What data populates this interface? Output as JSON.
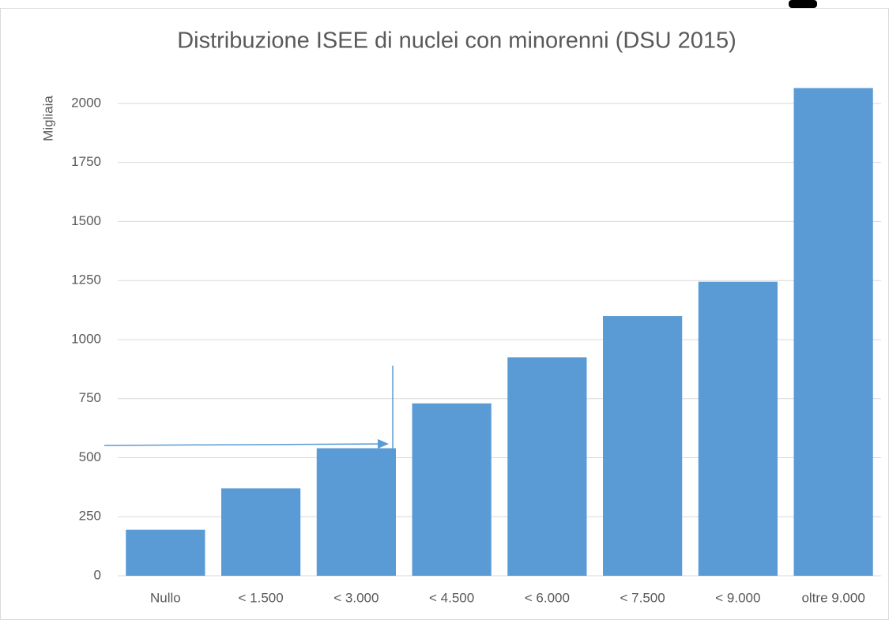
{
  "chart_data": {
    "type": "bar",
    "title": "Distribuzione ISEE di nuclei con minorenni (DSU 2015)",
    "y_label": "Migliaia",
    "categories": [
      "Nullo",
      "< 1.500",
      "< 3.000",
      "< 4.500",
      "< 6.000",
      "< 7.500",
      "< 9.000",
      "oltre 9.000"
    ],
    "values": [
      195,
      370,
      540,
      730,
      925,
      1100,
      1245,
      2065
    ],
    "color": "#5b9bd5",
    "ylim": [
      0,
      2100
    ],
    "yticks": [
      0,
      250,
      500,
      750,
      1000,
      1250,
      1500,
      1750,
      2000
    ],
    "grid": true
  }
}
